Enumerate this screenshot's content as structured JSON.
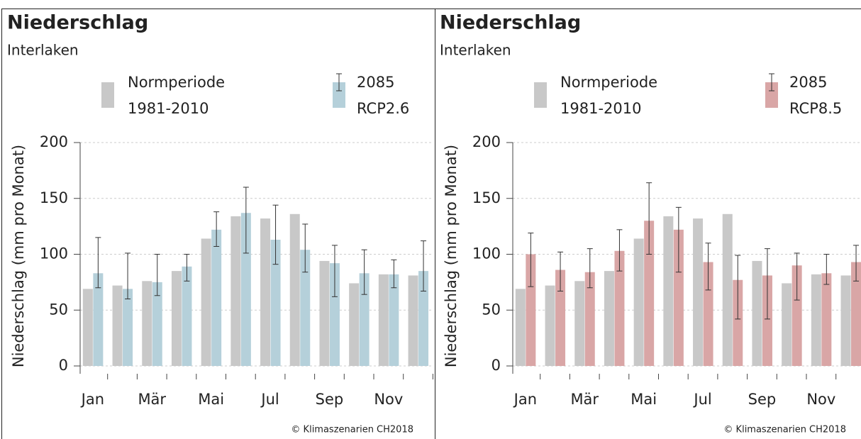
{
  "chart_data": [
    {
      "type": "bar",
      "title": "Niederschlag",
      "subtitle": "Interlaken",
      "ylabel": "Niederschlag (mm pro Monat)",
      "credit": "© Klimaszenarien CH2018",
      "categories": [
        "Jan",
        null,
        "Mär",
        null,
        "Mai",
        null,
        "Jul",
        null,
        "Sep",
        null,
        "Nov",
        null
      ],
      "ylim": [
        0,
        200
      ],
      "yticks": [
        0,
        50,
        100,
        150,
        200
      ],
      "grid": true,
      "series": [
        {
          "name": "Normperiode",
          "name_line2": "1981-2010",
          "color": "#c8c8c8",
          "values": [
            69,
            72,
            76,
            85,
            114,
            134,
            132,
            136,
            94,
            74,
            82,
            81
          ]
        },
        {
          "name": "2085",
          "name_line2": "RCP2.6",
          "color": "#b5d0da",
          "values": [
            83,
            69,
            75,
            89,
            122,
            137,
            113,
            104,
            92,
            83,
            82,
            85
          ],
          "error_low": [
            70,
            60,
            63,
            76,
            107,
            101,
            91,
            84,
            62,
            64,
            70,
            67
          ],
          "error_high": [
            115,
            101,
            100,
            100,
            138,
            160,
            144,
            127,
            108,
            104,
            95,
            112
          ]
        }
      ]
    },
    {
      "type": "bar",
      "title": "Niederschlag",
      "subtitle": "Interlaken",
      "ylabel": "Niederschlag (mm pro Monat)",
      "credit": "© Klimaszenarien CH2018",
      "categories": [
        "Jan",
        null,
        "Mär",
        null,
        "Mai",
        null,
        "Jul",
        null,
        "Sep",
        null,
        "Nov",
        null
      ],
      "ylim": [
        0,
        200
      ],
      "yticks": [
        0,
        50,
        100,
        150,
        200
      ],
      "grid": true,
      "series": [
        {
          "name": "Normperiode",
          "name_line2": "1981-2010",
          "color": "#c8c8c8",
          "values": [
            69,
            72,
            76,
            85,
            114,
            134,
            132,
            136,
            94,
            74,
            82,
            81
          ]
        },
        {
          "name": "2085",
          "name_line2": "RCP8.5",
          "color": "#d9a6a6",
          "values": [
            100,
            86,
            84,
            103,
            130,
            122,
            93,
            77,
            81,
            90,
            83,
            93
          ],
          "error_low": [
            71,
            67,
            70,
            85,
            100,
            84,
            68,
            42,
            42,
            59,
            73,
            76
          ],
          "error_high": [
            119,
            102,
            105,
            122,
            164,
            142,
            110,
            99,
            105,
            101,
            100,
            108
          ]
        }
      ]
    }
  ]
}
